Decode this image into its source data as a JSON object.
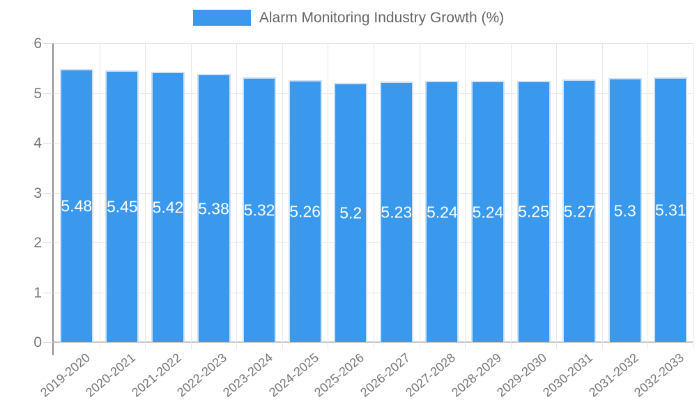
{
  "chart_data": {
    "type": "bar",
    "title": "Alarm Monitoring Industry Growth (%)",
    "categories": [
      "2019-2020",
      "2020-2021",
      "2021-2022",
      "2022-2023",
      "2023-2024",
      "2024-2025",
      "2025-2026",
      "2026-2027",
      "2027-2028",
      "2028-2029",
      "2029-2030",
      "2030-2031",
      "2031-2032",
      "2032-2033"
    ],
    "values": [
      5.48,
      5.45,
      5.42,
      5.38,
      5.32,
      5.26,
      5.2,
      5.23,
      5.24,
      5.24,
      5.25,
      5.27,
      5.3,
      5.31
    ],
    "value_labels": [
      "5.48",
      "5.45",
      "5.42",
      "5.38",
      "5.32",
      "5.26",
      "5.2",
      "5.23",
      "5.24",
      "5.24",
      "5.25",
      "5.27",
      "5.3",
      "5.31"
    ],
    "xlabel": "",
    "ylabel": "",
    "ylim": [
      0,
      6
    ],
    "yticks": [
      "0",
      "1",
      "2",
      "3",
      "4",
      "5",
      "6"
    ],
    "grid": true,
    "legend_position": "top",
    "value_label_position": "inside-center"
  },
  "colors": {
    "bar_fill": "#3a99ec",
    "bar_border": "#cde1f7",
    "grid": "#e6e6e6",
    "axis": "#8f8f8f",
    "tick_text": "#757575",
    "legend_text": "#666666",
    "value_text": "#ffffff"
  }
}
